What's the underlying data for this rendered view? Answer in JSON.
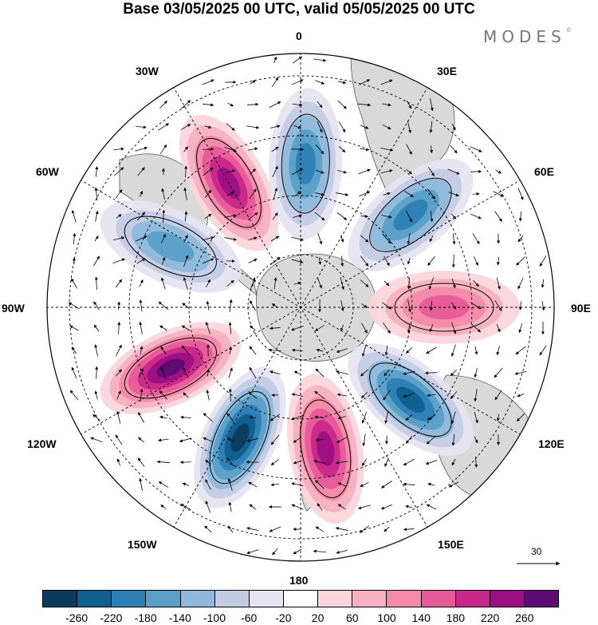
{
  "header": {
    "title": "Base 03/05/2025 00 UTC, valid 05/05/2025 00 UTC",
    "brand": "MODES",
    "brand_mark": "©"
  },
  "map": {
    "projection": "south-polar-stereographic",
    "longitude_labels": {
      "lon_0": "0",
      "lon_30e": "30E",
      "lon_60e": "60E",
      "lon_90e": "90E",
      "lon_120e": "120E",
      "lon_150e": "150E",
      "lon_180": "180",
      "lon_150w": "150W",
      "lon_120w": "120W",
      "lon_90w": "90W",
      "lon_60w": "60W",
      "lon_30w": "30W"
    },
    "reference_vector_label": "30",
    "anomaly_centers": [
      {
        "sign": "positive",
        "lon": -30,
        "strength": 240
      },
      {
        "sign": "negative",
        "lon": 2,
        "strength": -200
      },
      {
        "sign": "negative",
        "lon": 50,
        "strength": -180
      },
      {
        "sign": "positive",
        "lon": 90,
        "strength": 140
      },
      {
        "sign": "negative",
        "lon": 130,
        "strength": -220
      },
      {
        "sign": "positive",
        "lon": 170,
        "strength": 240
      },
      {
        "sign": "negative",
        "lon": -155,
        "strength": -260
      },
      {
        "sign": "positive",
        "lon": -115,
        "strength": 250
      },
      {
        "sign": "negative",
        "lon": -65,
        "strength": -160
      }
    ]
  },
  "colorbar": {
    "colors": [
      "#0b3b5c",
      "#0f5f8c",
      "#2c80b5",
      "#5a9fc9",
      "#8fb8da",
      "#c4cce4",
      "#e6e4f1",
      "#ffffff",
      "#fad6dc",
      "#f7b1c2",
      "#f38aaa",
      "#e65a98",
      "#c8288a",
      "#9c0f84",
      "#5e0b73"
    ],
    "tick_labels": [
      "-260",
      "-220",
      "-180",
      "-140",
      "-100",
      "-60",
      "-20",
      "20",
      "60",
      "100",
      "140",
      "180",
      "220",
      "260"
    ]
  },
  "colors": {
    "land": "#d9d9d9",
    "coast": "#555555",
    "gridline": "#000000"
  }
}
